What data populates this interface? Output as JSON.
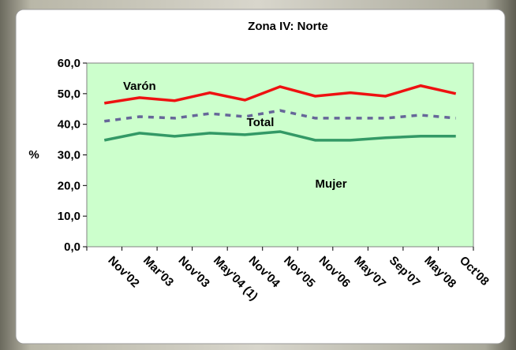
{
  "chart_data": {
    "type": "line",
    "title": "Zona IV: Norte",
    "y_label": "%",
    "categories": [
      "Nov'02",
      "Mar'03",
      "Nov'03",
      "May'04 (1)",
      "Nov'04",
      "Nov'05",
      "Nov'06",
      "May'07",
      "Sep'07",
      "May'08",
      "Oct'08"
    ],
    "series": [
      {
        "name": "Varón",
        "color": "#ee1111",
        "dash": false,
        "values": [
          46.9,
          48.7,
          47.7,
          50.3,
          47.9,
          52.3,
          49.2,
          50.3,
          49.2,
          52.6,
          50.0
        ]
      },
      {
        "name": "Total",
        "color": "#666699",
        "dash": true,
        "values": [
          41.0,
          42.5,
          42.0,
          43.5,
          42.5,
          44.5,
          42.0,
          42.0,
          42.0,
          43.0,
          42.0
        ]
      },
      {
        "name": "Mujer",
        "color": "#339966",
        "dash": false,
        "values": [
          34.8,
          37.1,
          36.1,
          37.1,
          36.6,
          37.6,
          34.8,
          34.8,
          35.6,
          36.1,
          36.1
        ]
      }
    ],
    "ylim": [
      0,
      60
    ],
    "yticks": [
      {
        "value": 0,
        "label": "0,0"
      },
      {
        "value": 10,
        "label": "10,0"
      },
      {
        "value": 20,
        "label": "20,0"
      },
      {
        "value": 30,
        "label": "30,0"
      },
      {
        "value": 40,
        "label": "40,0"
      },
      {
        "value": 50,
        "label": "50,0"
      },
      {
        "value": 60,
        "label": "60,0"
      }
    ],
    "background": "#ccffcc"
  }
}
